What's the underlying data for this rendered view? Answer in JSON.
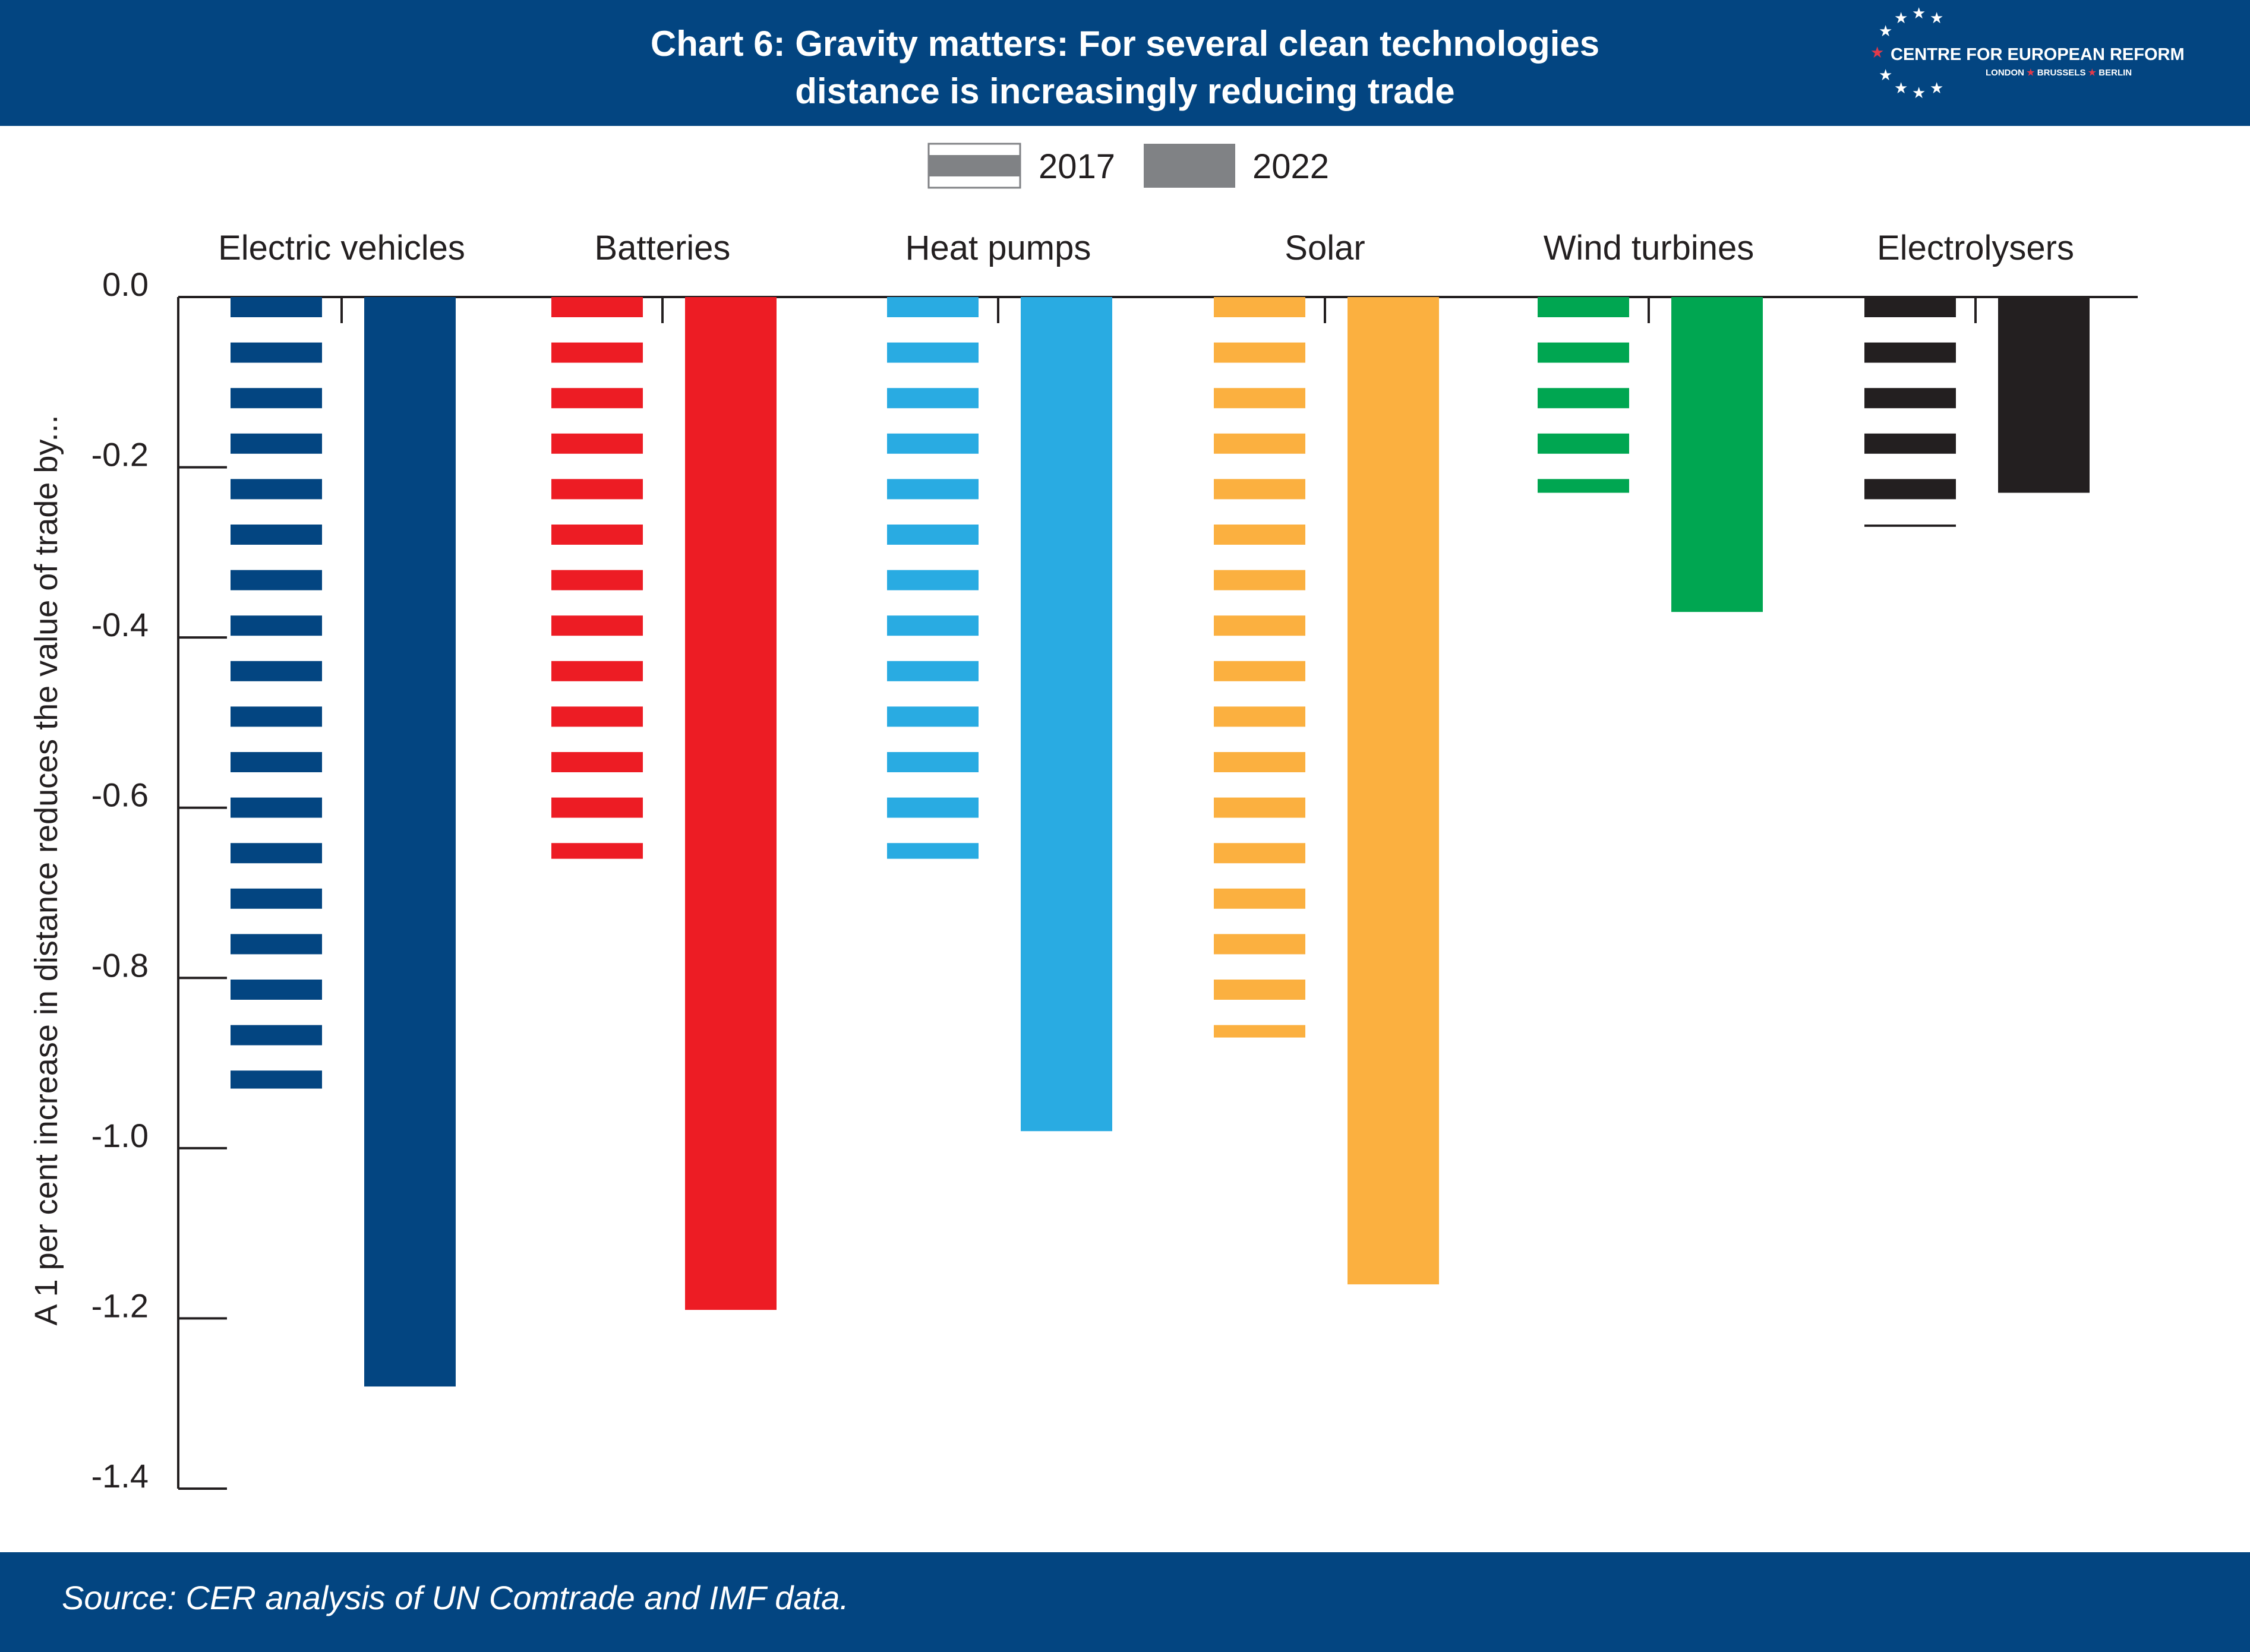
{
  "header": {
    "title_line1": "Chart 6: Gravity matters: For several clean technologies",
    "title_line2": "distance is increasingly reducing trade",
    "background": "#034581"
  },
  "logo": {
    "name": "CENTRE FOR EUROPEAN REFORM",
    "city1": "LONDON",
    "city2": "BRUSSELS",
    "city3": "BERLIN",
    "star_color": "#ffffff",
    "accent_star_color": "#e23a4a"
  },
  "footer": {
    "source": "Source: CER analysis of UN Comtrade and IMF data."
  },
  "chart_data": {
    "type": "bar",
    "orientation": "vertical",
    "ylabel": "A 1 per cent increase in distance reduces the value of trade by...",
    "ylim": [
      -1.4,
      0
    ],
    "yticks": [
      "0.0",
      "-0.2",
      "-0.4",
      "-0.6",
      "-0.8",
      "-1.0",
      "-1.2",
      "-1.4"
    ],
    "ytick_values": [
      0,
      -0.2,
      -0.4,
      -0.6,
      -0.8,
      -1.0,
      -1.2,
      -1.4
    ],
    "legend": {
      "placement": "top-center",
      "items": [
        {
          "label": "2017",
          "style": "striped",
          "swatch_color": "#808285"
        },
        {
          "label": "2022",
          "style": "solid",
          "swatch_color": "#808285"
        }
      ]
    },
    "categories": [
      "Electric vehicles",
      "Batteries",
      "Heat pumps",
      "Solar",
      "Wind turbines",
      "Electrolysers"
    ],
    "category_colors": [
      "#034581",
      "#ed1c24",
      "#29abe2",
      "#fbb040",
      "#00a651",
      "#231f20"
    ],
    "series": [
      {
        "name": "2017",
        "style": "striped",
        "values": [
          -0.93,
          -0.66,
          -0.66,
          -0.87,
          -0.23,
          -0.27
        ]
      },
      {
        "name": "2022",
        "style": "solid",
        "values": [
          -1.28,
          -1.19,
          -0.98,
          -1.16,
          -0.37,
          -0.23
        ]
      }
    ],
    "grid": false
  }
}
